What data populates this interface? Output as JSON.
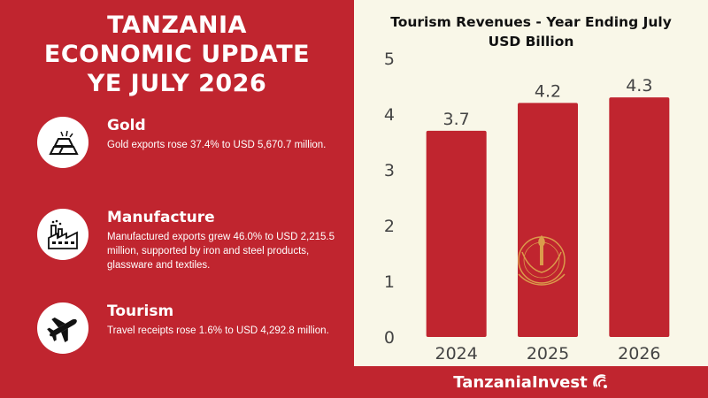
{
  "left": {
    "title_lines": [
      "TANZANIA",
      "ECONOMIC UPDATE",
      "YE JULY 2026"
    ],
    "items": [
      {
        "title": "Gold",
        "desc": "Gold exports rose 37.4% to USD 5,670.7 million.",
        "icon": "gold-bars-icon"
      },
      {
        "title": "Manufacture",
        "desc": "Manufactured exports grew 46.0% to USD 2,215.5 million, supported by iron and steel products, glassware and textiles.",
        "icon": "factory-icon"
      },
      {
        "title": "Tourism",
        "desc": "Travel receipts rose 1.6% to USD 4,292.8 million.",
        "icon": "airplane-icon"
      }
    ]
  },
  "chart_title_lines": [
    "Tourism Revenues - Year Ending July",
    "USD Billion"
  ],
  "chart_data": {
    "type": "bar",
    "title": "Tourism Revenues - Year Ending July",
    "subtitle": "USD Billion",
    "categories": [
      "2024",
      "2025",
      "2026"
    ],
    "values": [
      3.7,
      4.2,
      4.3
    ],
    "ylim": [
      0,
      5
    ],
    "yticks": [
      "0",
      "1",
      "2",
      "3",
      "4",
      "5"
    ],
    "grid": false,
    "bar_color": "#c0252f",
    "value_labels": [
      "3.7",
      "4.2",
      "4.3"
    ]
  },
  "brand": {
    "name": "TanzaniaInvest"
  },
  "colors": {
    "accent": "#c0252f",
    "panel": "#f9f7e8",
    "seal": "#e0b050"
  }
}
